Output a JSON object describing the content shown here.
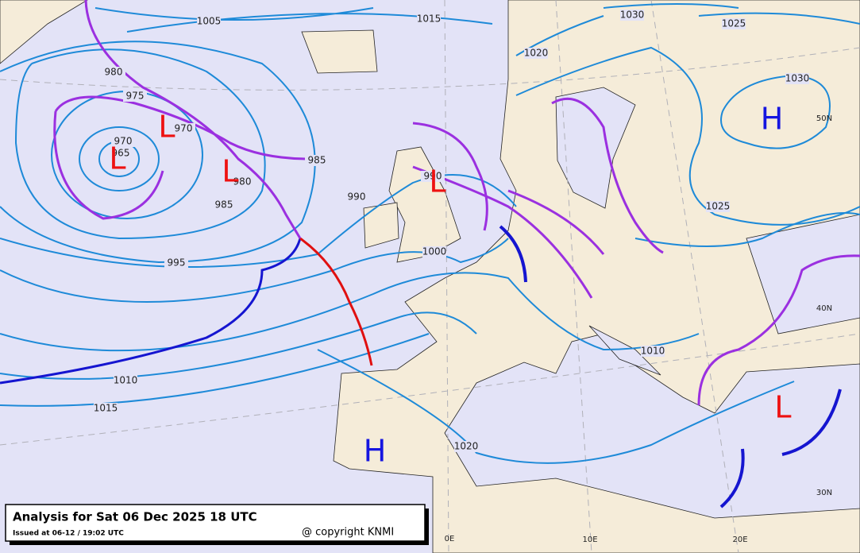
{
  "title": "Analysis for Sat 06 Dec 2025 18 UTC",
  "issued": "Issued at 06-12 / 19:02 UTC",
  "copyright": "@ copyright KNMI",
  "isobar_labels": [
    "1005",
    "1015",
    "1030",
    "1025",
    "1020",
    "980",
    "975",
    "970",
    "970",
    "965",
    "985",
    "980",
    "990",
    "990",
    "985",
    "995",
    "1000",
    "1025",
    "1030",
    "1010",
    "1010",
    "1015",
    "1020"
  ],
  "pressure_centers": [
    "L",
    "L",
    "L",
    "L",
    "H",
    "H",
    "L"
  ],
  "grid_labels": [
    "50N",
    "40N",
    "30N",
    "0E",
    "10E",
    "20E"
  ]
}
